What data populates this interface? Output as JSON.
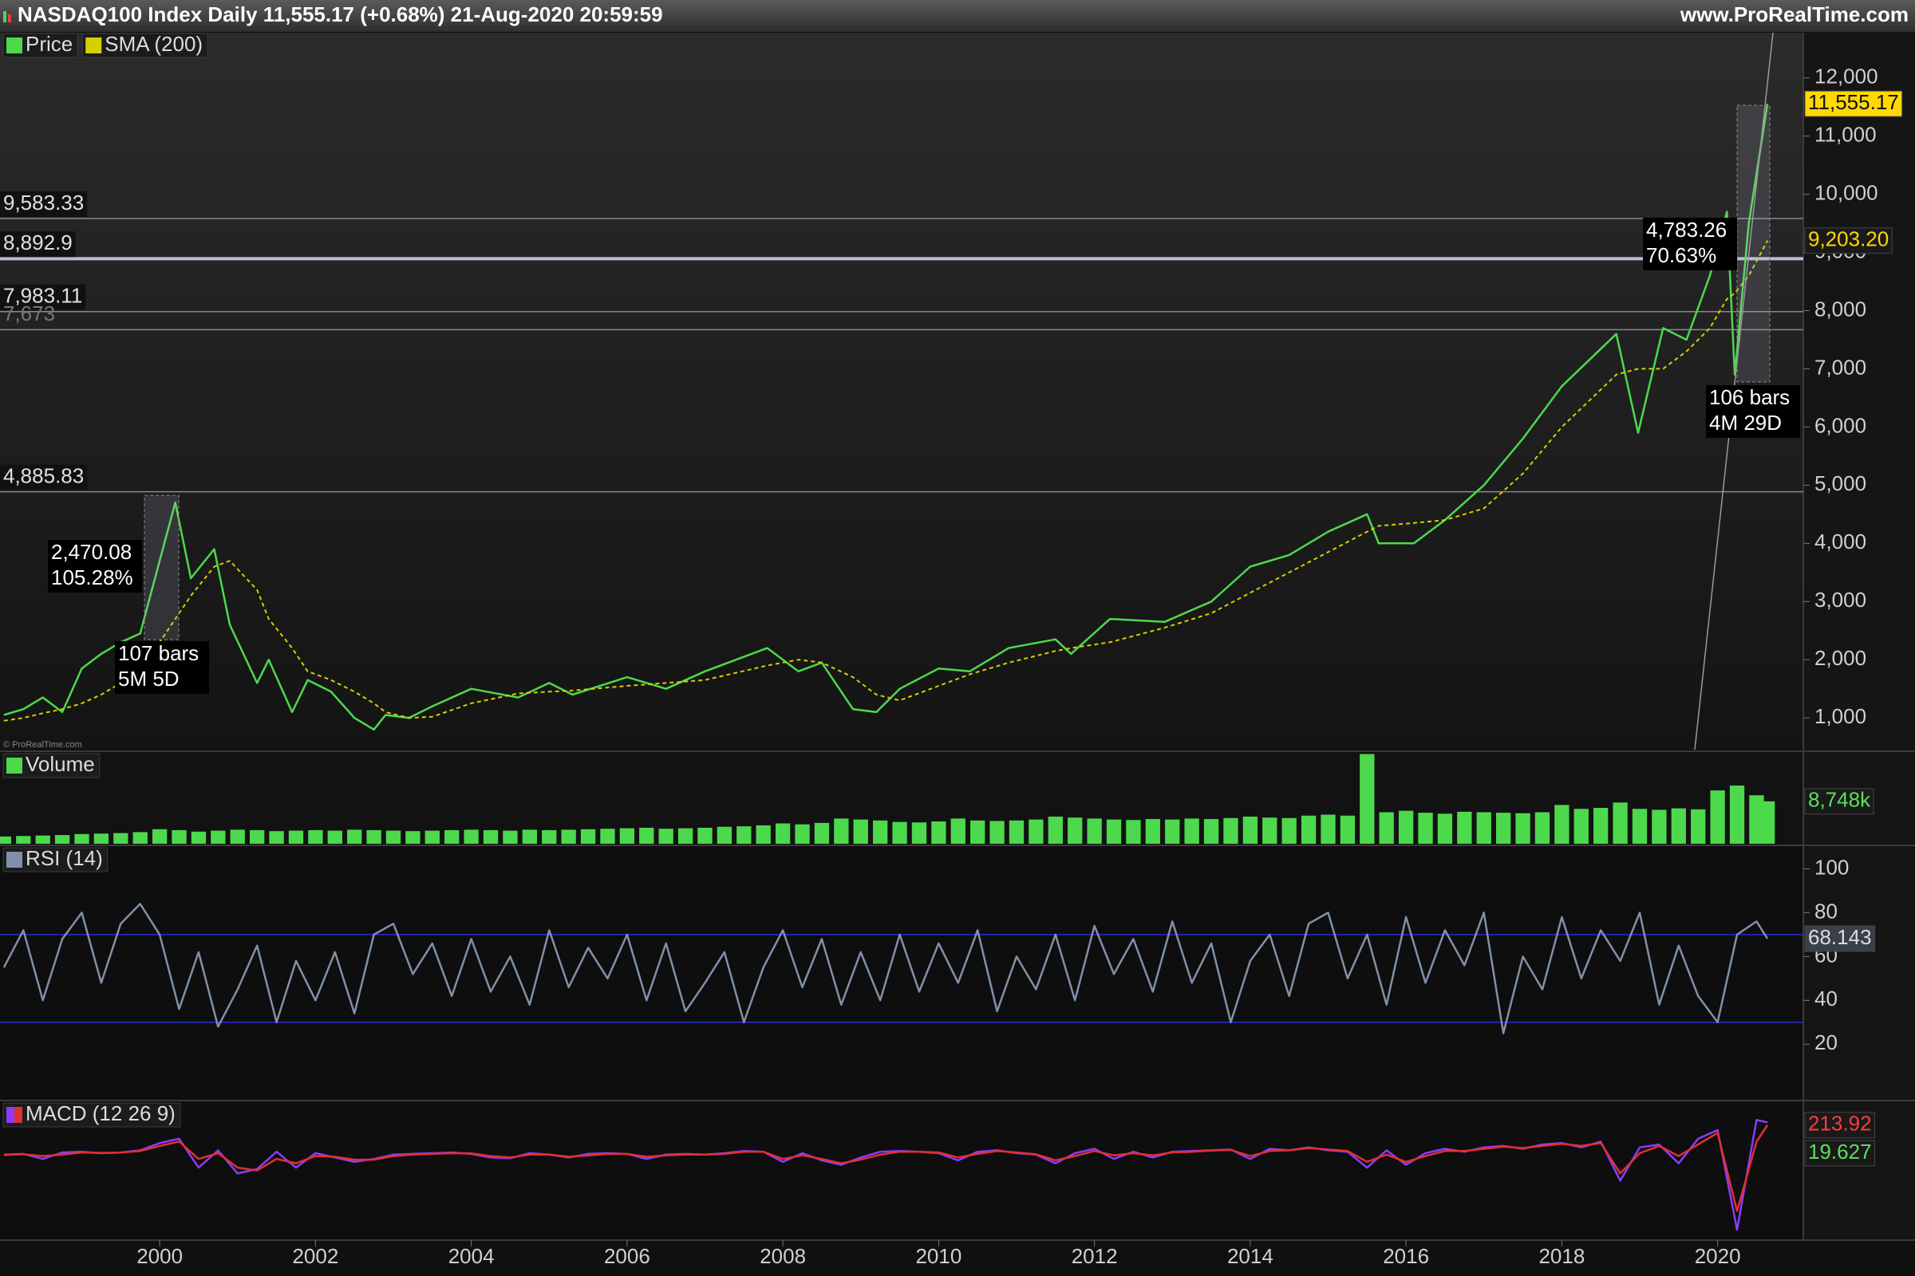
{
  "chart_data": [
    {
      "type": "line",
      "title": "NASDAQ100 Index Daily 11,555.17 (+0.68%) 21-Aug-2020 20:59:59",
      "source": "www.ProRealTime.com",
      "watermark": "© ProRealTime.com",
      "x": [
        1998,
        1998.25,
        1998.5,
        1998.75,
        1999,
        1999.25,
        1999.5,
        1999.75,
        2000,
        2000.2,
        2000.4,
        2000.7,
        2000.9,
        2001.25,
        2001.4,
        2001.7,
        2001.9,
        2002.2,
        2002.5,
        2002.75,
        2002.9,
        2003.2,
        2003.5,
        2004,
        2004.6,
        2005,
        2005.3,
        2006,
        2006.5,
        2007,
        2007.8,
        2008.2,
        2008.5,
        2008.9,
        2009.2,
        2009.5,
        2010,
        2010.4,
        2010.9,
        2011.5,
        2011.7,
        2012.2,
        2012.9,
        2013.5,
        2014,
        2014.5,
        2015,
        2015.5,
        2015.65,
        2016.1,
        2016.5,
        2017,
        2017.5,
        2018,
        2018.7,
        2018.98,
        2019.3,
        2019.6,
        2019.9,
        2020.12,
        2020.22,
        2020.4,
        2020.64
      ],
      "series": [
        {
          "name": "Price",
          "color": "#4cd94c",
          "values": [
            1050,
            1150,
            1350,
            1100,
            1850,
            2100,
            2300,
            2450,
            3700,
            4700,
            3400,
            3900,
            2600,
            1600,
            2000,
            1100,
            1650,
            1450,
            1000,
            800,
            1050,
            1000,
            1200,
            1500,
            1350,
            1600,
            1400,
            1700,
            1500,
            1800,
            2200,
            1800,
            1950,
            1150,
            1100,
            1500,
            1850,
            1800,
            2200,
            2350,
            2100,
            2700,
            2650,
            3000,
            3600,
            3800,
            4200,
            4500,
            4000,
            4000,
            4400,
            5000,
            5800,
            6700,
            7600,
            5900,
            7700,
            7500,
            8600,
            9700,
            6900,
            9500,
            11555.17
          ]
        },
        {
          "name": "SMA (200)",
          "color": "#d4d000",
          "dashed": true,
          "values": [
            950,
            1000,
            1080,
            1150,
            1250,
            1400,
            1600,
            1850,
            2300,
            2700,
            3100,
            3600,
            3700,
            3200,
            2700,
            2200,
            1800,
            1650,
            1450,
            1250,
            1100,
            1000,
            1020,
            1250,
            1420,
            1450,
            1470,
            1550,
            1600,
            1650,
            1900,
            2000,
            1950,
            1700,
            1400,
            1300,
            1550,
            1750,
            1950,
            2150,
            2200,
            2300,
            2550,
            2800,
            3150,
            3500,
            3850,
            4200,
            4300,
            4350,
            4400,
            4600,
            5200,
            6000,
            6900,
            7000,
            7000,
            7300,
            7700,
            8200,
            8300,
            8600,
            9203.2
          ]
        }
      ],
      "xlim": [
        1997.95,
        2021.1
      ],
      "xticks": [
        2000,
        2002,
        2004,
        2006,
        2008,
        2010,
        2012,
        2014,
        2016,
        2018,
        2020
      ],
      "ylim": [
        454,
        12777
      ],
      "yticks": [
        {
          "value": 1000,
          "label": "1,000"
        },
        {
          "value": 2000,
          "label": "2,000"
        },
        {
          "value": 3000,
          "label": "3,000"
        },
        {
          "value": 4000,
          "label": "4,000"
        },
        {
          "value": 5000,
          "label": "5,000"
        },
        {
          "value": 6000,
          "label": "6,000"
        },
        {
          "value": 7000,
          "label": "7,000"
        },
        {
          "value": 8000,
          "label": "8,000"
        },
        {
          "value": 9000,
          "label": "9,000"
        },
        {
          "value": 10000,
          "label": "10,000"
        },
        {
          "value": 11000,
          "label": "11,000"
        },
        {
          "value": 12000,
          "label": "12,000"
        }
      ],
      "levels": [
        {
          "value": 9583.33,
          "label": "9,583.33",
          "color": "#8a8a8a"
        },
        {
          "value": 8892.9,
          "label": "8,892.9",
          "color": "#b8c0d4",
          "thick": true
        },
        {
          "value": 7983.11,
          "label": "7,983.11",
          "color": "#8a8a8a"
        },
        {
          "value": 7673,
          "label": "7,673",
          "color": "#8a8a8a",
          "dim": true
        },
        {
          "value": 4885.83,
          "label": "4,885.83",
          "color": "#8a8a8a"
        }
      ],
      "last_labels": [
        {
          "value": 11555.17,
          "label": "11,555.17",
          "color": "#111111",
          "bg": "#ffd800"
        },
        {
          "value": 9203.2,
          "label": "9,203.20",
          "color": "#ffd800",
          "bg": "#1a1a1a"
        }
      ],
      "annotations": [
        [
          "2,470.08",
          "105.28%"
        ],
        [
          "107 bars",
          "5M 5D"
        ],
        [
          "4,783.26",
          "70.63%"
        ],
        [
          "106 bars",
          "4M 29D"
        ]
      ]
    },
    {
      "type": "bar",
      "title": "Volume",
      "x": [
        1998,
        1998.25,
        1998.5,
        1998.75,
        1999,
        1999.25,
        1999.5,
        1999.75,
        2000,
        2000.25,
        2000.5,
        2000.75,
        2001,
        2001.25,
        2001.5,
        2001.75,
        2002,
        2002.25,
        2002.5,
        2002.75,
        2003,
        2003.25,
        2003.5,
        2003.75,
        2004,
        2004.25,
        2004.5,
        2004.75,
        2005,
        2005.25,
        2005.5,
        2005.75,
        2006,
        2006.25,
        2006.5,
        2006.75,
        2007,
        2007.25,
        2007.5,
        2007.75,
        2008,
        2008.25,
        2008.5,
        2008.75,
        2009,
        2009.25,
        2009.5,
        2009.75,
        2010,
        2010.25,
        2010.5,
        2010.75,
        2011,
        2011.25,
        2011.5,
        2011.75,
        2012,
        2012.25,
        2012.5,
        2012.75,
        2013,
        2013.25,
        2013.5,
        2013.75,
        2014,
        2014.25,
        2014.5,
        2014.75,
        2015,
        2015.25,
        2015.5,
        2015.75,
        2016,
        2016.25,
        2016.5,
        2016.75,
        2017,
        2017.25,
        2017.5,
        2017.75,
        2018,
        2018.25,
        2018.5,
        2018.75,
        2019,
        2019.25,
        2019.5,
        2019.75,
        2020,
        2020.25,
        2020.5,
        2020.64
      ],
      "series": [
        {
          "color": "#4cd94c",
          "values": [
            1500,
            1600,
            1700,
            1800,
            2000,
            2100,
            2200,
            2400,
            3000,
            2800,
            2500,
            2700,
            2900,
            2800,
            2600,
            2700,
            2800,
            2700,
            2900,
            2800,
            2700,
            2600,
            2700,
            2800,
            2900,
            2800,
            2700,
            2900,
            2800,
            2900,
            3000,
            3100,
            3200,
            3300,
            3100,
            3200,
            3300,
            3500,
            3600,
            3800,
            4200,
            4000,
            4300,
            5200,
            5000,
            4800,
            4500,
            4400,
            4600,
            5200,
            4800,
            4700,
            4800,
            5000,
            5600,
            5400,
            5200,
            5000,
            4900,
            5100,
            5000,
            5200,
            5100,
            5300,
            5600,
            5400,
            5300,
            5800,
            6000,
            5800,
            18500,
            6500,
            6800,
            6400,
            6200,
            6600,
            6500,
            6400,
            6300,
            6500,
            8000,
            7200,
            7400,
            8500,
            7200,
            7000,
            7300,
            7100,
            11000,
            12000,
            10000,
            8748
          ]
        }
      ],
      "xlim": [
        1997.95,
        2021.1
      ],
      "ylim": [
        0,
        18750
      ],
      "last_label": {
        "value": 8748,
        "label": "8,748k",
        "color": "#5ae05a",
        "bg": "#1a1a1a"
      }
    },
    {
      "type": "line",
      "title": "RSI (14)",
      "x": [
        1998,
        1998.25,
        1998.5,
        1998.75,
        1999,
        1999.25,
        1999.5,
        1999.75,
        2000,
        2000.25,
        2000.5,
        2000.75,
        2001,
        2001.25,
        2001.5,
        2001.75,
        2002,
        2002.25,
        2002.5,
        2002.75,
        2003,
        2003.25,
        2003.5,
        2003.75,
        2004,
        2004.25,
        2004.5,
        2004.75,
        2005,
        2005.25,
        2005.5,
        2005.75,
        2006,
        2006.25,
        2006.5,
        2006.75,
        2007,
        2007.25,
        2007.5,
        2007.75,
        2008,
        2008.25,
        2008.5,
        2008.75,
        2009,
        2009.25,
        2009.5,
        2009.75,
        2010,
        2010.25,
        2010.5,
        2010.75,
        2011,
        2011.25,
        2011.5,
        2011.75,
        2012,
        2012.25,
        2012.5,
        2012.75,
        2013,
        2013.25,
        2013.5,
        2013.75,
        2014,
        2014.25,
        2014.5,
        2014.75,
        2015,
        2015.25,
        2015.5,
        2015.75,
        2016,
        2016.25,
        2016.5,
        2016.75,
        2017,
        2017.25,
        2017.5,
        2017.75,
        2018,
        2018.25,
        2018.5,
        2018.75,
        2019,
        2019.25,
        2019.5,
        2019.75,
        2020,
        2020.25,
        2020.5,
        2020.64
      ],
      "series": [
        {
          "color": "#8090a8",
          "values": [
            55,
            72,
            40,
            68,
            80,
            48,
            75,
            84,
            70,
            36,
            62,
            28,
            45,
            65,
            30,
            58,
            40,
            62,
            34,
            70,
            75,
            52,
            66,
            42,
            68,
            44,
            60,
            38,
            72,
            46,
            64,
            50,
            70,
            40,
            66,
            35,
            48,
            62,
            30,
            55,
            72,
            46,
            68,
            38,
            62,
            40,
            70,
            44,
            66,
            48,
            72,
            35,
            60,
            45,
            70,
            40,
            74,
            52,
            68,
            44,
            76,
            48,
            66,
            30,
            58,
            70,
            42,
            75,
            80,
            50,
            70,
            38,
            78,
            48,
            72,
            56,
            80,
            25,
            60,
            45,
            78,
            50,
            72,
            58,
            80,
            38,
            65,
            42,
            30,
            70,
            76,
            68.143
          ]
        }
      ],
      "xlim": [
        1997.95,
        2021.1
      ],
      "ylim": [
        -5,
        110
      ],
      "yticks": [
        20,
        40,
        60,
        80,
        100
      ],
      "levels": [
        70,
        30
      ],
      "level_color": "#2a2ad8",
      "last_label": {
        "value": 68.143,
        "color": "#dddddd",
        "bg": "#3a3f4a"
      }
    },
    {
      "type": "line",
      "title": "MACD (12 26 9)",
      "x": [
        1998,
        1998.25,
        1998.5,
        1998.75,
        1999,
        1999.25,
        1999.5,
        1999.75,
        2000,
        2000.25,
        2000.5,
        2000.75,
        2001,
        2001.25,
        2001.5,
        2001.75,
        2002,
        2002.25,
        2002.5,
        2002.75,
        2003,
        2003.25,
        2003.5,
        2003.75,
        2004,
        2004.25,
        2004.5,
        2004.75,
        2005,
        2005.25,
        2005.5,
        2005.75,
        2006,
        2006.25,
        2006.5,
        2006.75,
        2007,
        2007.25,
        2007.5,
        2007.75,
        2008,
        2008.25,
        2008.5,
        2008.75,
        2009,
        2009.25,
        2009.5,
        2009.75,
        2010,
        2010.25,
        2010.5,
        2010.75,
        2011,
        2011.25,
        2011.5,
        2011.75,
        2012,
        2012.25,
        2012.5,
        2012.75,
        2013,
        2013.25,
        2013.5,
        2013.75,
        2014,
        2014.25,
        2014.5,
        2014.75,
        2015,
        2015.25,
        2015.5,
        2015.75,
        2016,
        2016.25,
        2016.5,
        2016.75,
        2017,
        2017.25,
        2017.5,
        2017.75,
        2018,
        2018.25,
        2018.5,
        2018.75,
        2019,
        2019.25,
        2019.5,
        2019.75,
        2020,
        2020.25,
        2020.5,
        2020.64
      ],
      "series": [
        {
          "color": "#8a3cff",
          "values": [
            10,
            15,
            -20,
            25,
            30,
            20,
            25,
            40,
            90,
            120,
            -80,
            40,
            -120,
            -90,
            30,
            -80,
            20,
            -10,
            -40,
            -20,
            10,
            15,
            20,
            25,
            15,
            -10,
            -15,
            20,
            10,
            -10,
            15,
            20,
            15,
            -20,
            10,
            15,
            10,
            20,
            35,
            30,
            -40,
            20,
            -30,
            -60,
            -10,
            30,
            35,
            30,
            20,
            -30,
            30,
            40,
            20,
            10,
            -50,
            20,
            50,
            -20,
            30,
            -10,
            30,
            35,
            40,
            45,
            -20,
            50,
            40,
            60,
            40,
            30,
            -80,
            40,
            -60,
            20,
            50,
            30,
            60,
            70,
            50,
            80,
            90,
            60,
            100,
            -170,
            60,
            80,
            -50,
            120,
            180,
            -510,
            250,
            233.547
          ]
        },
        {
          "color": "#e03030",
          "values": [
            8,
            12,
            0,
            10,
            25,
            22,
            24,
            35,
            70,
            100,
            -20,
            20,
            -80,
            -100,
            -20,
            -50,
            0,
            -5,
            -25,
            -25,
            0,
            10,
            15,
            20,
            18,
            0,
            -10,
            10,
            10,
            -5,
            5,
            15,
            15,
            -5,
            5,
            10,
            10,
            15,
            30,
            30,
            -20,
            5,
            -20,
            -50,
            -25,
            10,
            30,
            30,
            25,
            -10,
            15,
            35,
            25,
            12,
            -30,
            0,
            35,
            5,
            20,
            5,
            25,
            30,
            38,
            42,
            0,
            35,
            40,
            55,
            45,
            35,
            -40,
            10,
            -40,
            0,
            35,
            35,
            50,
            65,
            55,
            70,
            85,
            70,
            90,
            -120,
            20,
            70,
            0,
            80,
            160,
            -380,
            100,
            213.92
          ]
        }
      ],
      "xlim": [
        1997.95,
        2021.1
      ],
      "ylim": [
        -576,
        373
      ],
      "last_values": [
        {
          "value": 213.92,
          "color": "#ff3a3a"
        },
        {
          "value": 19.627,
          "color": "#5ae05a"
        }
      ]
    }
  ]
}
